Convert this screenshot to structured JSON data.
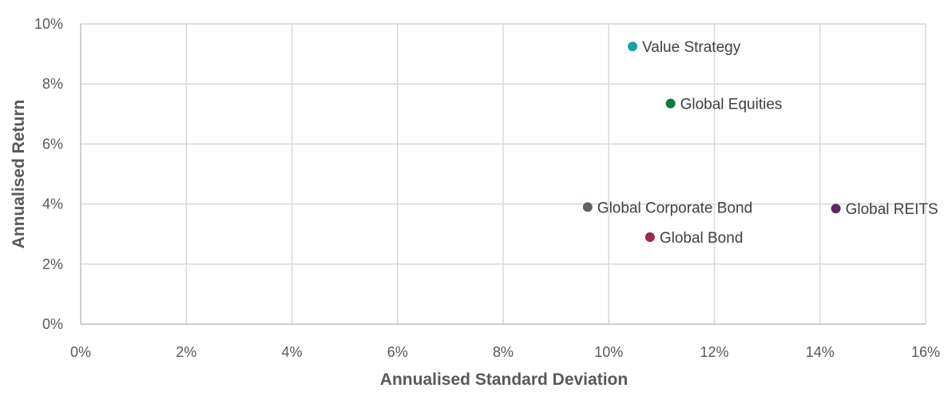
{
  "chart_data": {
    "type": "scatter",
    "xlabel": "Annualised Standard Deviation",
    "ylabel": "Annualised Return",
    "xlim": [
      0,
      16
    ],
    "ylim": [
      0,
      10
    ],
    "x_ticks": [
      0,
      2,
      4,
      6,
      8,
      10,
      12,
      14,
      16
    ],
    "y_ticks": [
      0,
      2,
      4,
      6,
      8,
      10
    ],
    "x_tick_labels": [
      "0%",
      "2%",
      "4%",
      "6%",
      "8%",
      "10%",
      "12%",
      "14%",
      "16%"
    ],
    "y_tick_labels": [
      "0%",
      "2%",
      "4%",
      "6%",
      "8%",
      "10%"
    ],
    "grid": true,
    "legend": "none",
    "points": [
      {
        "label": "Value Strategy",
        "x": 10.45,
        "y": 9.25,
        "color": "#17a2a8"
      },
      {
        "label": "Global Equities",
        "x": 11.17,
        "y": 7.35,
        "color": "#0b7a3e"
      },
      {
        "label": "Global Corporate Bond",
        "x": 9.6,
        "y": 3.9,
        "color": "#5a6660"
      },
      {
        "label": "Global REITS",
        "x": 14.3,
        "y": 3.85,
        "color": "#5b2a5e"
      },
      {
        "label": "Global Bond",
        "x": 10.78,
        "y": 2.9,
        "color": "#9c2552"
      }
    ]
  }
}
